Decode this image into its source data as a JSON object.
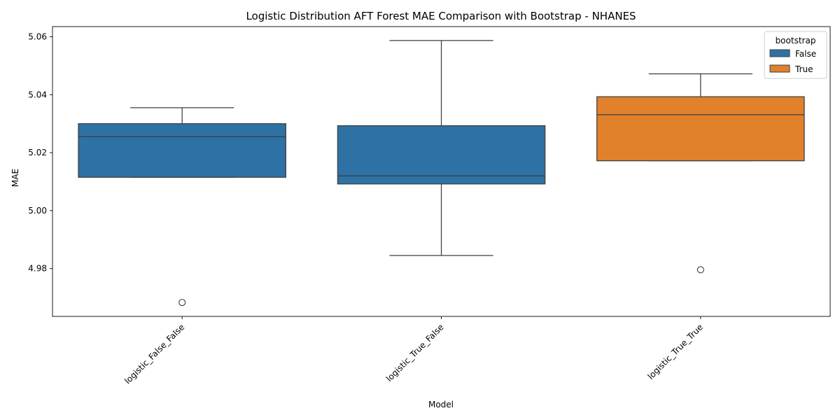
{
  "chart_data": {
    "type": "box",
    "title": "Logistic Distribution AFT Forest MAE Comparison with Bootstrap  - NHANES",
    "xlabel": "Model",
    "ylabel": "MAE",
    "categories": [
      "logistic_False_False",
      "logistic_True_False",
      "logistic_True_True"
    ],
    "yticks": [
      "4.98",
      "5.00",
      "5.02",
      "5.04",
      "5.06"
    ],
    "ylim": [
      4.9635,
      5.0635
    ],
    "grid": false,
    "legend": {
      "title": "bootstrap",
      "position": "top-right",
      "entries": [
        {
          "label": "False",
          "color": "#2e72a5"
        },
        {
          "label": "True",
          "color": "#e1812c"
        }
      ]
    },
    "boxes": [
      {
        "category": "logistic_False_False",
        "bootstrap": "False",
        "whisker_low": 5.0115,
        "q1": 5.0115,
        "median": 5.0255,
        "q3": 5.03,
        "whisker_high": 5.0355,
        "outliers": [
          4.9683
        ]
      },
      {
        "category": "logistic_True_False",
        "bootstrap": "False",
        "whisker_low": 4.9845,
        "q1": 5.0092,
        "median": 5.012,
        "q3": 5.0293,
        "whisker_high": 5.0587,
        "outliers": []
      },
      {
        "category": "logistic_True_True",
        "bootstrap": "True",
        "whisker_low": 5.0172,
        "q1": 5.0172,
        "median": 5.0331,
        "q3": 5.0393,
        "whisker_high": 5.0472,
        "outliers": [
          4.9796
        ]
      }
    ]
  }
}
